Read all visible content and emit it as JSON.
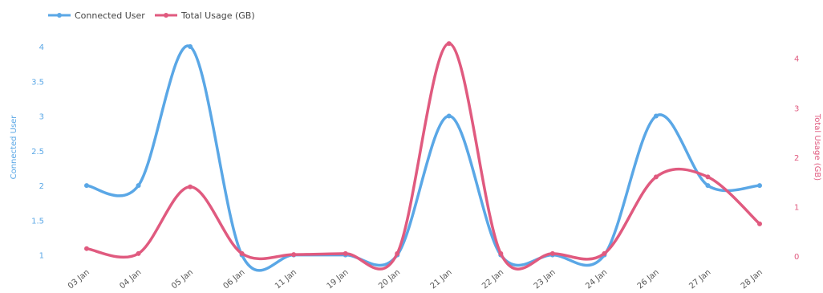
{
  "chart_data": {
    "type": "line",
    "categories": [
      "03 Jan",
      "04 Jan",
      "05 Jan",
      "06 Jan",
      "11 Jan",
      "19 Jan",
      "20 Jan",
      "21 Jan",
      "22 Jan",
      "23 Jan",
      "24 Jan",
      "26 Jan",
      "27 Jan",
      "28 Jan"
    ],
    "series": [
      {
        "name": "Connected User",
        "axis": "left",
        "color": "#5aa7e6",
        "values": [
          2,
          2,
          4,
          1,
          1,
          1,
          1,
          3,
          1,
          1,
          1,
          3,
          2,
          2
        ]
      },
      {
        "name": "Total Usage (GB)",
        "axis": "right",
        "color": "#e05a7f",
        "values": [
          0.15,
          0.05,
          1.4,
          0.05,
          0.03,
          0.05,
          0.05,
          4.3,
          0.05,
          0.05,
          0.05,
          1.6,
          1.6,
          0.65
        ]
      }
    ],
    "ylabel_left": "Connected User",
    "ylabel_right": "Total Usage (GB)",
    "ylim_left": [
      0.95,
      4.15
    ],
    "ylim_right": [
      -0.05,
      4.45
    ],
    "yticks_left": [
      "1",
      "1.5",
      "2",
      "2.5",
      "3",
      "3.5",
      "4"
    ],
    "yticks_right": [
      "0",
      "1",
      "2",
      "3",
      "4"
    ],
    "legend_position": "top-left",
    "grid": false
  }
}
